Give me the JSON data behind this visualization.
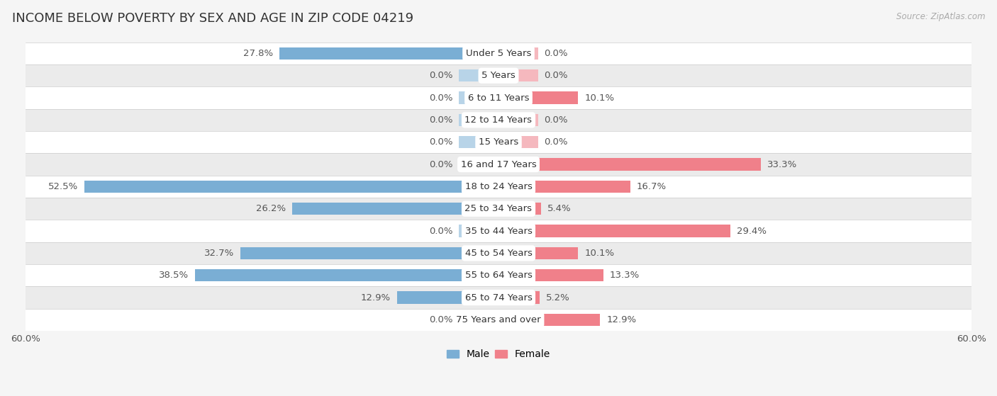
{
  "title": "INCOME BELOW POVERTY BY SEX AND AGE IN ZIP CODE 04219",
  "source": "Source: ZipAtlas.com",
  "categories": [
    "Under 5 Years",
    "5 Years",
    "6 to 11 Years",
    "12 to 14 Years",
    "15 Years",
    "16 and 17 Years",
    "18 to 24 Years",
    "25 to 34 Years",
    "35 to 44 Years",
    "45 to 54 Years",
    "55 to 64 Years",
    "65 to 74 Years",
    "75 Years and over"
  ],
  "male": [
    27.8,
    0.0,
    0.0,
    0.0,
    0.0,
    0.0,
    52.5,
    26.2,
    0.0,
    32.7,
    38.5,
    12.9,
    0.0
  ],
  "female": [
    0.0,
    0.0,
    10.1,
    0.0,
    0.0,
    33.3,
    16.7,
    5.4,
    29.4,
    10.1,
    13.3,
    5.2,
    12.9
  ],
  "male_color": "#7aaed4",
  "female_color": "#f0808a",
  "male_color_light": "#b8d4e8",
  "female_color_light": "#f5b8be",
  "male_label": "Male",
  "female_label": "Female",
  "axis_limit": 60.0,
  "background_color": "#f5f5f5",
  "row_colors": [
    "#ffffff",
    "#ebebeb"
  ],
  "bar_height": 0.55,
  "stub_val": 5.0,
  "title_fontsize": 13,
  "label_fontsize": 9.5,
  "cat_fontsize": 9.5,
  "tick_fontsize": 9.5,
  "source_fontsize": 8.5
}
